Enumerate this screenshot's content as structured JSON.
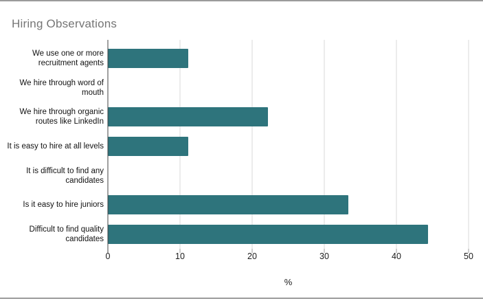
{
  "window": {
    "border_color": "#9b9b9b",
    "background": "#ffffff"
  },
  "chart_data": {
    "type": "bar",
    "orientation": "horizontal",
    "title": "Hiring Observations",
    "title_color": "#757575",
    "categories": [
      "We use one or more recruitment agents",
      "We hire through word of mouth",
      "We hire through organic routes like LinkedIn",
      "It is easy to hire at all levels",
      "It is difficult to find any candidates",
      "Is it easy to hire juniors",
      "Difficult to find quality candidates"
    ],
    "values": [
      11.1,
      0,
      22.2,
      11.1,
      0,
      33.3,
      44.4
    ],
    "xlabel": "%",
    "ylabel": "",
    "xlim": [
      0,
      50
    ],
    "xticks": [
      0,
      10,
      20,
      30,
      40,
      50
    ],
    "bar_color": "#2e747c",
    "gridline_color": "#d9d9d9",
    "axis_color": "#424242",
    "grid": true,
    "legend": "none"
  }
}
